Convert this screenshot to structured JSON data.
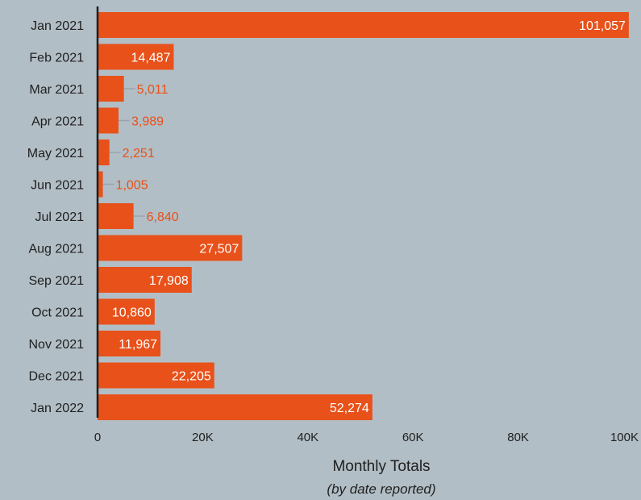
{
  "chart_data": {
    "type": "bar",
    "orientation": "horizontal",
    "categories": [
      "Jan 2021",
      "Feb 2021",
      "Mar 2021",
      "Apr 2021",
      "May 2021",
      "Jun 2021",
      "Jul 2021",
      "Aug 2021",
      "Sep 2021",
      "Oct 2021",
      "Nov 2021",
      "Dec 2021",
      "Jan 2022"
    ],
    "values": [
      101057,
      14487,
      5011,
      3989,
      2251,
      1005,
      6840,
      27507,
      17908,
      10860,
      11967,
      22205,
      52274
    ],
    "value_labels": [
      "101,057",
      "14,487",
      "5,011",
      "3,989",
      "2,251",
      "1,005",
      "6,840",
      "27,507",
      "17,908",
      "10,860",
      "11,967",
      "22,205",
      "52,274"
    ],
    "xlabel": "Monthly Totals",
    "xlabel_sub": "(by date reported)",
    "xlim": [
      0,
      100000
    ],
    "xticks": [
      0,
      20000,
      40000,
      60000,
      80000,
      100000
    ],
    "xtick_labels": [
      "0",
      "20K",
      "40K",
      "60K",
      "80K",
      "100K"
    ],
    "grid": false,
    "colors": {
      "bar": "#e8511a",
      "background": "#b2bec5",
      "axis": "#1f1f1f",
      "leader": "#9aa4ab"
    }
  }
}
